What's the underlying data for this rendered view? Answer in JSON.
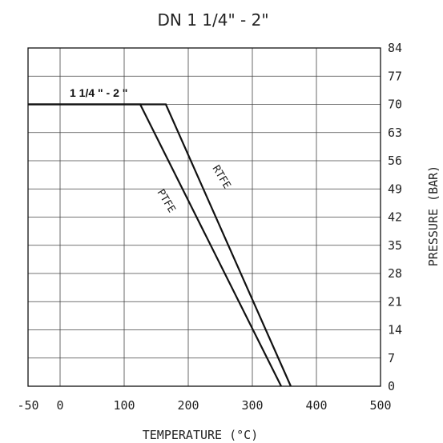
{
  "chart_data": {
    "type": "line",
    "title": "DN 1 1/4\" - 2\"",
    "xlabel": "TEMPERATURE (°C)",
    "ylabel": "PRESSURE (BAR)",
    "xlim": [
      -50,
      500
    ],
    "ylim": [
      0,
      84
    ],
    "x_ticks": [
      "-50",
      "0",
      "100",
      "200",
      "300",
      "400",
      "500"
    ],
    "y_ticks": [
      "0",
      "7",
      "14",
      "21",
      "28",
      "35",
      "42",
      "49",
      "56",
      "63",
      "70",
      "77",
      "84"
    ],
    "grid": true,
    "size_label": "1 1/4 \" - 2 \"",
    "series": [
      {
        "name": "RTFE",
        "x": [
          -50,
          165,
          360
        ],
        "y": [
          70,
          70,
          0
        ]
      },
      {
        "name": "PTFE",
        "x": [
          -50,
          125,
          345
        ],
        "y": [
          70,
          70,
          0
        ]
      }
    ]
  }
}
